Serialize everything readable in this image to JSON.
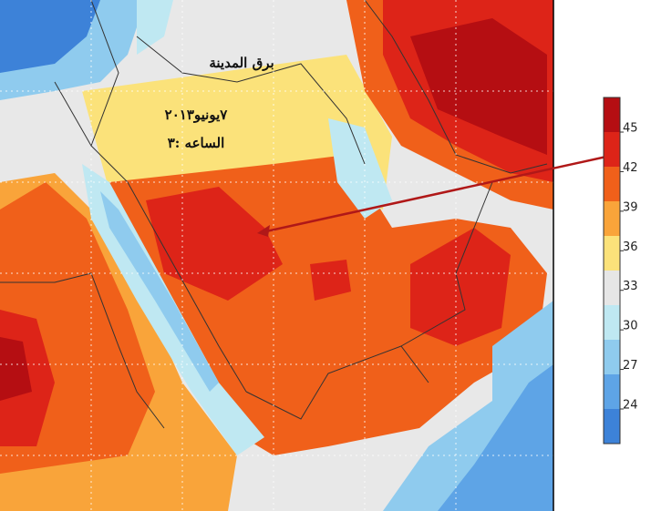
{
  "map": {
    "annotations": [
      "برق المدينة",
      "٧يونيو٢٠١٣",
      "الساعه :٣"
    ]
  },
  "colorbar": {
    "ticks": [
      45,
      42,
      39,
      36,
      33,
      30,
      27,
      24
    ],
    "colors": [
      "#b50e12",
      "#dd2418",
      "#f0601a",
      "#f9a43a",
      "#fbe27a",
      "#e6e6e6",
      "#bfe8f2",
      "#8fcbee",
      "#5ea4e6",
      "#3d82d8"
    ]
  }
}
